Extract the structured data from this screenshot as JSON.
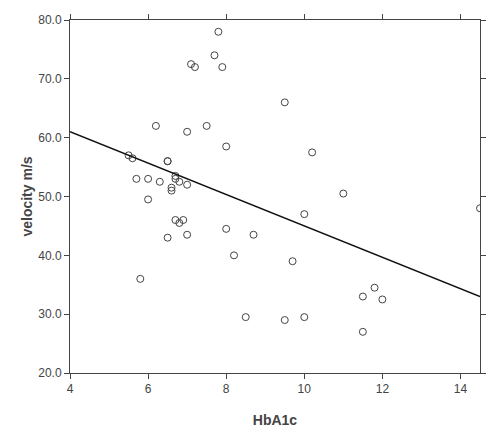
{
  "chart_data": {
    "type": "scatter",
    "xlabel": "HbA1c",
    "ylabel": "velocity m/s",
    "series": [
      {
        "type": "scatter",
        "marker": "circle-open",
        "color": "#444444",
        "x": [
          5.5,
          5.6,
          5.7,
          5.8,
          6.0,
          6.0,
          6.2,
          6.3,
          6.5,
          6.5,
          6.5,
          6.6,
          6.6,
          6.7,
          6.7,
          6.7,
          6.8,
          6.8,
          6.9,
          7.0,
          7.0,
          7.0,
          7.1,
          7.2,
          7.5,
          7.7,
          7.8,
          7.9,
          8.0,
          8.0,
          8.2,
          8.5,
          8.7,
          9.5,
          9.7,
          10.0,
          10.0,
          10.2,
          11.0,
          11.5,
          11.8,
          12.0,
          14.5,
          11.5,
          9.5
        ],
        "values": [
          57.0,
          56.5,
          53.0,
          36.0,
          49.5,
          53.0,
          62.0,
          52.5,
          56.0,
          56.0,
          43.0,
          51.5,
          51.0,
          53.0,
          53.5,
          46.0,
          52.5,
          45.5,
          46.0,
          61.0,
          52.0,
          43.5,
          72.5,
          72.0,
          62.0,
          74.0,
          78.0,
          72.0,
          58.5,
          44.5,
          40.0,
          29.5,
          43.5,
          66.0,
          39.0,
          47.0,
          29.5,
          57.5,
          50.5,
          33.0,
          34.5,
          32.5,
          48.0,
          27.0,
          29.0
        ]
      },
      {
        "type": "line",
        "line_style": "solid",
        "color": "#111111",
        "x": [
          4.0,
          14.5
        ],
        "values": [
          61.0,
          33.0
        ]
      }
    ],
    "xlim": [
      4.0,
      14.5
    ],
    "ylim": [
      20.0,
      80.0
    ],
    "xticks": [
      4,
      6,
      8,
      10,
      12,
      14
    ],
    "yticks": [
      {
        "value": 20.0,
        "label": "20.0"
      },
      {
        "value": 30.0,
        "label": "30.0"
      },
      {
        "value": 40.0,
        "label": "40.0"
      },
      {
        "value": 50.0,
        "label": "50.0"
      },
      {
        "value": 60.0,
        "label": "60.0"
      },
      {
        "value": 70.0,
        "label": "70.0"
      },
      {
        "value": 80.0,
        "label": "80.0"
      }
    ],
    "grid": false
  }
}
